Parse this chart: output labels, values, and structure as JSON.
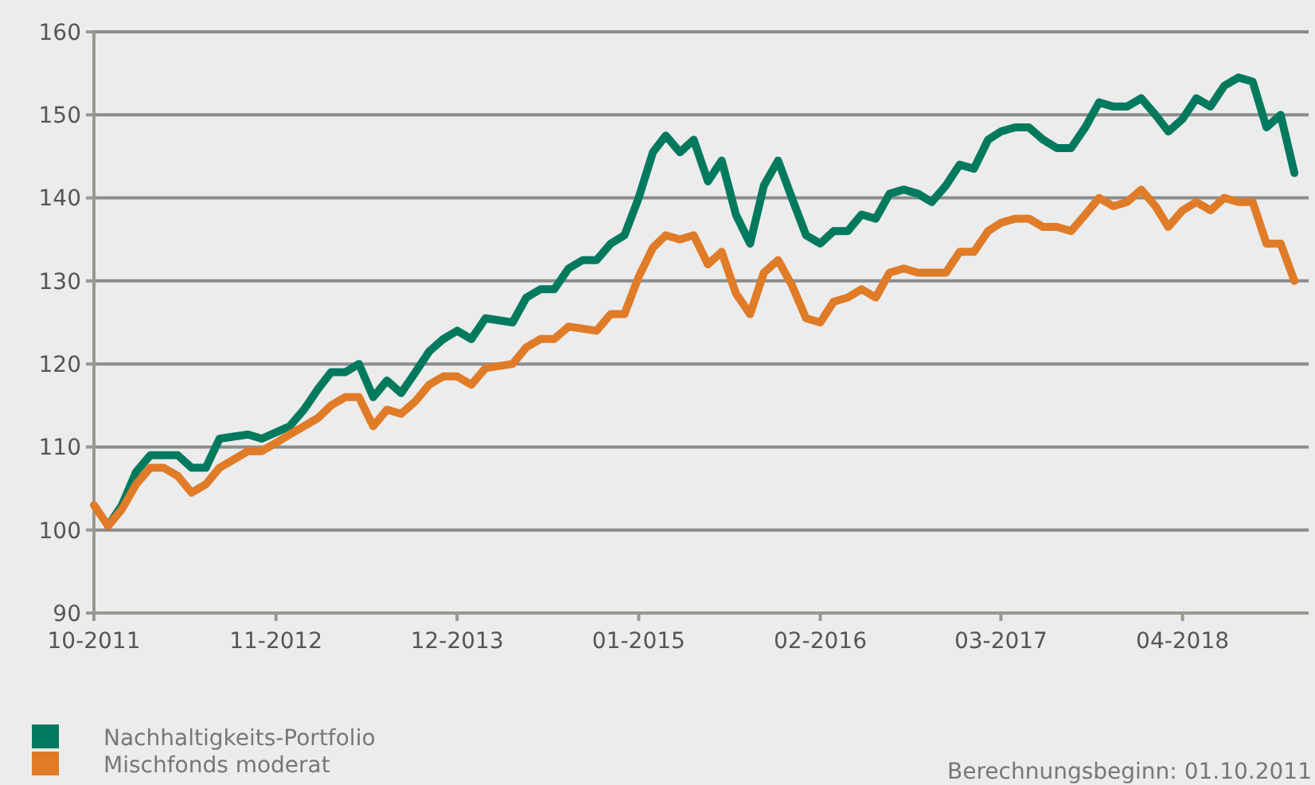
{
  "chart_data": {
    "type": "line",
    "annotations": [
      "Berechnungsbeginn: 01.10.2011"
    ],
    "xlim": [
      "2011-10",
      "2019-01"
    ],
    "xticks": [
      {
        "value": "2011-10",
        "label": "10-2011"
      },
      {
        "value": "2012-11",
        "label": "11-2012"
      },
      {
        "value": "2013-12",
        "label": "12-2013"
      },
      {
        "value": "2015-01",
        "label": "01-2015"
      },
      {
        "value": "2016-02",
        "label": "02-2016"
      },
      {
        "value": "2017-03",
        "label": "03-2017"
      },
      {
        "value": "2018-04",
        "label": "04-2018"
      }
    ],
    "ylim": [
      90,
      160
    ],
    "yticks": [
      90,
      100,
      110,
      120,
      130,
      140,
      150,
      160
    ],
    "grid": "y",
    "legend": "bottom",
    "marker": "none",
    "line_style": "solid",
    "series": [
      {
        "name": "Nachhaltigkeits-Portfolio",
        "color": "#007a5e",
        "x": [
          "2011-11",
          "2011-12",
          "2012-01",
          "2012-02",
          "2012-04",
          "2012-05",
          "2012-06",
          "2012-07",
          "2012-09",
          "2012-10",
          "2012-12",
          "2013-01",
          "2013-02",
          "2013-03",
          "2013-04",
          "2013-05",
          "2013-06",
          "2013-07",
          "2013-08",
          "2013-09",
          "2013-10",
          "2013-11",
          "2013-12",
          "2014-01",
          "2014-02",
          "2014-04",
          "2014-05",
          "2014-06",
          "2014-07",
          "2014-08",
          "2014-09",
          "2014-10",
          "2014-11",
          "2014-12",
          "2015-01",
          "2015-02",
          "2015-03",
          "2015-04",
          "2015-05",
          "2015-06",
          "2015-07",
          "2015-08",
          "2015-09",
          "2015-10",
          "2015-11",
          "2015-12",
          "2016-01",
          "2016-02",
          "2016-03",
          "2016-04",
          "2016-05",
          "2016-06",
          "2016-07",
          "2016-08",
          "2016-09",
          "2016-10",
          "2016-11",
          "2016-12",
          "2017-01",
          "2017-02",
          "2017-03",
          "2017-04",
          "2017-05",
          "2017-06",
          "2017-07",
          "2017-08",
          "2017-09",
          "2017-10",
          "2017-11",
          "2017-12",
          "2018-01",
          "2018-02",
          "2018-03",
          "2018-04",
          "2018-05",
          "2018-06",
          "2018-07",
          "2018-08",
          "2018-09",
          "2018-10",
          "2018-11",
          "2018-12"
        ],
        "values": [
          100.5,
          103,
          107,
          109,
          109,
          107.5,
          107.5,
          111,
          111.5,
          111,
          112.5,
          114.5,
          117,
          119,
          119,
          120,
          116,
          118,
          116.5,
          119,
          121.5,
          123,
          124,
          123,
          125.5,
          125,
          128,
          129,
          129,
          131.5,
          132.5,
          132.5,
          134.5,
          135.5,
          140,
          145.5,
          147.5,
          145.5,
          147,
          142,
          144.5,
          138,
          134.5,
          141.5,
          144.5,
          140,
          135.5,
          134.5,
          136,
          136,
          138,
          137.5,
          140.5,
          141,
          140.5,
          139.5,
          141.5,
          144,
          143.5,
          147,
          148,
          148.5,
          148.5,
          147,
          146,
          146,
          148.5,
          151.5,
          151,
          151,
          152,
          150,
          148,
          149.5,
          152,
          151,
          153.5,
          154.5,
          154,
          148.5,
          150,
          143
        ]
      },
      {
        "name": "Mischfonds moderat",
        "color": "#e07b28",
        "x": [
          "2011-10",
          "2011-11",
          "2011-12",
          "2012-01",
          "2012-02",
          "2012-03",
          "2012-04",
          "2012-05",
          "2012-06",
          "2012-07",
          "2012-08",
          "2012-09",
          "2012-10",
          "2012-11",
          "2012-12",
          "2013-01",
          "2013-02",
          "2013-03",
          "2013-04",
          "2013-05",
          "2013-06",
          "2013-07",
          "2013-08",
          "2013-09",
          "2013-10",
          "2013-11",
          "2013-12",
          "2014-01",
          "2014-02",
          "2014-04",
          "2014-05",
          "2014-06",
          "2014-07",
          "2014-08",
          "2014-10",
          "2014-11",
          "2014-12",
          "2015-01",
          "2015-02",
          "2015-03",
          "2015-04",
          "2015-05",
          "2015-06",
          "2015-07",
          "2015-08",
          "2015-09",
          "2015-10",
          "2015-11",
          "2015-12",
          "2016-01",
          "2016-02",
          "2016-03",
          "2016-04",
          "2016-05",
          "2016-06",
          "2016-07",
          "2016-08",
          "2016-09",
          "2016-10",
          "2016-11",
          "2016-12",
          "2017-01",
          "2017-02",
          "2017-03",
          "2017-04",
          "2017-05",
          "2017-06",
          "2017-07",
          "2017-08",
          "2017-09",
          "2017-10",
          "2017-11",
          "2017-12",
          "2018-01",
          "2018-02",
          "2018-03",
          "2018-04",
          "2018-05",
          "2018-06",
          "2018-07",
          "2018-08",
          "2018-09",
          "2018-10",
          "2018-11",
          "2018-12"
        ],
        "values": [
          103,
          100.5,
          102.5,
          105.5,
          107.5,
          107.5,
          106.5,
          104.5,
          105.5,
          107.5,
          108.5,
          109.5,
          109.5,
          110.5,
          111.5,
          112.5,
          113.5,
          115,
          116,
          116,
          112.5,
          114.5,
          114,
          115.5,
          117.5,
          118.5,
          118.5,
          117.5,
          119.5,
          120,
          122,
          123,
          123,
          124.5,
          124,
          126,
          126,
          130.5,
          134,
          135.5,
          135,
          135.5,
          132,
          133.5,
          128.5,
          126,
          131,
          132.5,
          129.5,
          125.5,
          125,
          127.5,
          128,
          129,
          128,
          131,
          131.5,
          131,
          131,
          131,
          133.5,
          133.5,
          136,
          137,
          137.5,
          137.5,
          136.5,
          136.5,
          136,
          138,
          140,
          139,
          139.5,
          141,
          139,
          136.5,
          138.5,
          139.5,
          138.5,
          140,
          139.5,
          139.5,
          134.5,
          134.5,
          130
        ]
      }
    ]
  }
}
